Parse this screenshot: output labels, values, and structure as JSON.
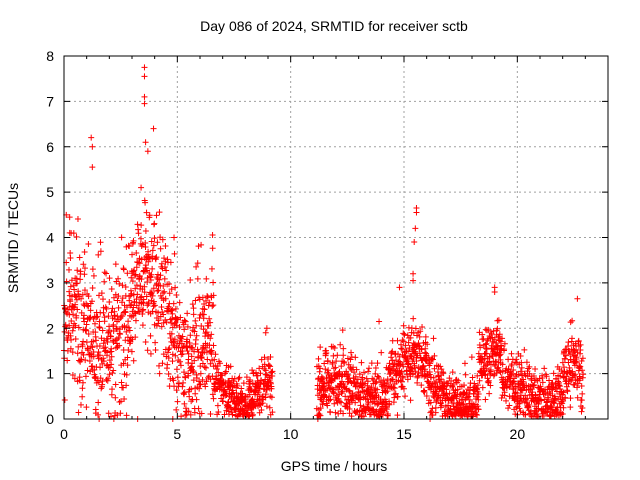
{
  "chart_data": {
    "type": "scatter",
    "title": "Day 086 of 2024, SRMTID for receiver sctb",
    "xlabel": "GPS time / hours",
    "ylabel": "SRMTID / TECUs",
    "xlim": [
      0,
      24
    ],
    "ylim": [
      0,
      8
    ],
    "x_ticks": [
      0,
      5,
      10,
      15,
      20
    ],
    "x_tick_labels": [
      "0",
      "5",
      "10",
      "15",
      "20"
    ],
    "y_ticks": [
      0,
      1,
      2,
      3,
      4,
      5,
      6,
      7,
      8
    ],
    "y_tick_labels": [
      "0",
      "1",
      "2",
      "3",
      "4",
      "5",
      "6",
      "7",
      "8"
    ],
    "grid": true,
    "marker": "plus",
    "color": "#ff0000",
    "series": [
      {
        "name": "SRMTID",
        "segments": [
          {
            "start": 0.0,
            "end": 6.6,
            "level": 2.2,
            "spread": 1.0
          },
          {
            "start": 6.6,
            "end": 9.2,
            "level": 0.75,
            "spread": 0.35
          },
          {
            "start": 11.15,
            "end": 22.9,
            "level": 0.75,
            "spread": 0.45
          }
        ],
        "peaks": [
          {
            "x": 3.55,
            "y": 7.75
          },
          {
            "x": 3.55,
            "y": 7.55
          },
          {
            "x": 3.55,
            "y": 7.1
          },
          {
            "x": 3.55,
            "y": 6.95
          },
          {
            "x": 3.95,
            "y": 6.4
          },
          {
            "x": 1.2,
            "y": 6.2
          },
          {
            "x": 1.25,
            "y": 6.0
          },
          {
            "x": 3.6,
            "y": 6.1
          },
          {
            "x": 3.7,
            "y": 5.9
          },
          {
            "x": 1.25,
            "y": 5.55
          },
          {
            "x": 3.4,
            "y": 5.1
          },
          {
            "x": 15.55,
            "y": 4.65
          },
          {
            "x": 15.55,
            "y": 4.55
          },
          {
            "x": 15.5,
            "y": 4.2
          },
          {
            "x": 15.45,
            "y": 3.9
          },
          {
            "x": 15.4,
            "y": 3.2
          },
          {
            "x": 15.4,
            "y": 3.05
          },
          {
            "x": 14.8,
            "y": 2.9
          },
          {
            "x": 19.0,
            "y": 2.9
          },
          {
            "x": 19.0,
            "y": 2.8
          },
          {
            "x": 22.65,
            "y": 2.65
          },
          {
            "x": 8.95,
            "y": 2.0
          },
          {
            "x": 8.9,
            "y": 1.9
          },
          {
            "x": 13.9,
            "y": 2.15
          },
          {
            "x": 0.1,
            "y": 4.5
          },
          {
            "x": 0.25,
            "y": 4.45
          }
        ],
        "zero_markers": [
          1.55,
          2.2,
          3.25,
          4.8,
          11.2,
          16.15
        ]
      }
    ]
  }
}
